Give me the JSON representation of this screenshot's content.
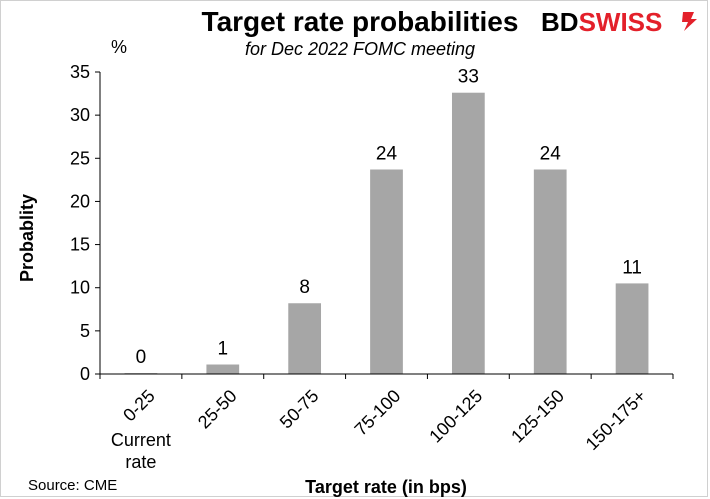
{
  "chart_data": {
    "type": "bar",
    "title": "Target rate probabilities",
    "subtitle": "for Dec 2022 FOMC meeting",
    "ylabel": "Probablity",
    "y_unit": "%",
    "xlabel": "Target rate (in bps)",
    "source": "Source: CME",
    "categories": [
      "0-25",
      "25-50",
      "50-75",
      "75-100",
      "100-125",
      "125-150",
      "150-175+"
    ],
    "category_notes": [
      "Current rate",
      "",
      "",
      "",
      "",
      "",
      ""
    ],
    "values": [
      0.1,
      1.1,
      8.2,
      23.7,
      32.6,
      23.7,
      10.5
    ],
    "data_labels": [
      "0",
      "1",
      "8",
      "24",
      "33",
      "24",
      "11"
    ],
    "ylim": [
      0,
      35
    ],
    "yticks": [
      0,
      5,
      10,
      15,
      20,
      25,
      30,
      35
    ],
    "grid": false,
    "legend": "none",
    "bar_color": "#a6a6a6"
  },
  "brand": {
    "name": "BDSWISS",
    "part1": "BD",
    "part2": "SWISS",
    "color": "#e3202a"
  }
}
